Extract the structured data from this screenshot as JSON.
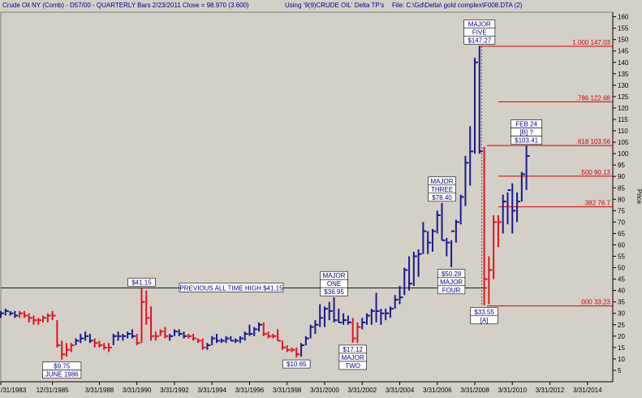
{
  "header": {
    "instrument": "Crude Oil NY (Comb) - D57/00 -  QUARTERLY Bars  2/23/2011 Close = 98.970 (3.600)",
    "using": "Using '9(9)CRUDE OIL' Delta TP's",
    "file": "File: C:\\Gd\\Delta\\ gold complex\\F008.DTA (2)"
  },
  "colors": {
    "up_bar": "#1a1a8c",
    "down_bar": "#e0141e",
    "fib_line": "#cc0000",
    "plot_bg": "#d4d0c8",
    "text": "#00008b"
  },
  "chart_data": {
    "type": "bar",
    "title": "",
    "xlabel": "",
    "ylabel": "Price",
    "ylim": [
      0,
      162
    ],
    "y_ticks": [
      5,
      10,
      15,
      20,
      25,
      30,
      35,
      40,
      45,
      50,
      55,
      60,
      65,
      70,
      75,
      80,
      85,
      90,
      95,
      100,
      105,
      110,
      115,
      120,
      125,
      130,
      135,
      140,
      145,
      150,
      155,
      160
    ],
    "x_ticks": [
      "/31/1983",
      "12/31/1985",
      "3/31/1988",
      "3/31/1990",
      "3/31/1992",
      "3/31/1994",
      "3/31/1996",
      "3/31/1998",
      "3/31/2000",
      "3/31/2002",
      "3/31/2004",
      "3/31/2006",
      "3/31/2008",
      "3/31/2010",
      "3/31/2012",
      "3/31/2014"
    ],
    "x_tick_years": [
      1983.0,
      1985.75,
      1988.25,
      1990.25,
      1992.25,
      1994.25,
      1996.25,
      1998.25,
      2000.25,
      2002.25,
      2004.25,
      2006.25,
      2008.25,
      2010.25,
      2012.25,
      2014.25
    ],
    "xlim": [
      1983.0,
      2015.6
    ],
    "bars": [
      {
        "t": 1983.0,
        "h": 31,
        "l": 28,
        "c": 30,
        "d": 0
      },
      {
        "t": 1983.25,
        "h": 32,
        "l": 29,
        "c": 31,
        "d": 0
      },
      {
        "t": 1983.5,
        "h": 31,
        "l": 29,
        "c": 30,
        "d": 0
      },
      {
        "t": 1983.75,
        "h": 31,
        "l": 28,
        "c": 29,
        "d": 0
      },
      {
        "t": 1984.0,
        "h": 31,
        "l": 28,
        "c": 30,
        "d": 1
      },
      {
        "t": 1984.25,
        "h": 31,
        "l": 28,
        "c": 29,
        "d": 1
      },
      {
        "t": 1984.5,
        "h": 30,
        "l": 26,
        "c": 28,
        "d": 1
      },
      {
        "t": 1984.75,
        "h": 29,
        "l": 25,
        "c": 27,
        "d": 1
      },
      {
        "t": 1985.0,
        "h": 28,
        "l": 25,
        "c": 27,
        "d": 1
      },
      {
        "t": 1985.25,
        "h": 29,
        "l": 26,
        "c": 28,
        "d": 1
      },
      {
        "t": 1985.5,
        "h": 30,
        "l": 26,
        "c": 29,
        "d": 1
      },
      {
        "t": 1985.75,
        "h": 31,
        "l": 27,
        "c": 29,
        "d": 1
      },
      {
        "t": 1986.0,
        "h": 27,
        "l": 15,
        "c": 16,
        "d": 1
      },
      {
        "t": 1986.25,
        "h": 18,
        "l": 9.75,
        "c": 12,
        "d": 1
      },
      {
        "t": 1986.5,
        "h": 17,
        "l": 11,
        "c": 14,
        "d": 1
      },
      {
        "t": 1986.75,
        "h": 17,
        "l": 13,
        "c": 16,
        "d": 1
      },
      {
        "t": 1987.0,
        "h": 19,
        "l": 16,
        "c": 18,
        "d": 0
      },
      {
        "t": 1987.25,
        "h": 21,
        "l": 17,
        "c": 19,
        "d": 0
      },
      {
        "t": 1987.5,
        "h": 22,
        "l": 18,
        "c": 20,
        "d": 0
      },
      {
        "t": 1987.75,
        "h": 21,
        "l": 17,
        "c": 18,
        "d": 0
      },
      {
        "t": 1988.0,
        "h": 19,
        "l": 15,
        "c": 17,
        "d": 1
      },
      {
        "t": 1988.25,
        "h": 18,
        "l": 15,
        "c": 16,
        "d": 1
      },
      {
        "t": 1988.5,
        "h": 17,
        "l": 14,
        "c": 15,
        "d": 1
      },
      {
        "t": 1988.75,
        "h": 17,
        "l": 13,
        "c": 15,
        "d": 1
      },
      {
        "t": 1989.0,
        "h": 21,
        "l": 16,
        "c": 20,
        "d": 0
      },
      {
        "t": 1989.25,
        "h": 22,
        "l": 18,
        "c": 20,
        "d": 0
      },
      {
        "t": 1989.5,
        "h": 21,
        "l": 18,
        "c": 20,
        "d": 0
      },
      {
        "t": 1989.75,
        "h": 22,
        "l": 19,
        "c": 21,
        "d": 0
      },
      {
        "t": 1990.0,
        "h": 23,
        "l": 19,
        "c": 20,
        "d": 0
      },
      {
        "t": 1990.25,
        "h": 21,
        "l": 16,
        "c": 17,
        "d": 1
      },
      {
        "t": 1990.5,
        "h": 41.15,
        "l": 17,
        "c": 35,
        "d": 1
      },
      {
        "t": 1990.75,
        "h": 40,
        "l": 25,
        "c": 28,
        "d": 1
      },
      {
        "t": 1991.0,
        "h": 33,
        "l": 18,
        "c": 20,
        "d": 1
      },
      {
        "t": 1991.25,
        "h": 22,
        "l": 18,
        "c": 20,
        "d": 1
      },
      {
        "t": 1991.5,
        "h": 23,
        "l": 20,
        "c": 22,
        "d": 1
      },
      {
        "t": 1991.75,
        "h": 24,
        "l": 19,
        "c": 20,
        "d": 1
      },
      {
        "t": 1992.0,
        "h": 21,
        "l": 18,
        "c": 20,
        "d": 0
      },
      {
        "t": 1992.25,
        "h": 23,
        "l": 20,
        "c": 22,
        "d": 0
      },
      {
        "t": 1992.5,
        "h": 23,
        "l": 20,
        "c": 21,
        "d": 0
      },
      {
        "t": 1992.75,
        "h": 22,
        "l": 19,
        "c": 20,
        "d": 0
      },
      {
        "t": 1993.0,
        "h": 21,
        "l": 19,
        "c": 20,
        "d": 1
      },
      {
        "t": 1993.25,
        "h": 21,
        "l": 18,
        "c": 19,
        "d": 1
      },
      {
        "t": 1993.5,
        "h": 19,
        "l": 17,
        "c": 18,
        "d": 1
      },
      {
        "t": 1993.75,
        "h": 19,
        "l": 14,
        "c": 15,
        "d": 1
      },
      {
        "t": 1994.0,
        "h": 17,
        "l": 14,
        "c": 16,
        "d": 0
      },
      {
        "t": 1994.25,
        "h": 20,
        "l": 16,
        "c": 19,
        "d": 0
      },
      {
        "t": 1994.5,
        "h": 21,
        "l": 17,
        "c": 18,
        "d": 0
      },
      {
        "t": 1994.75,
        "h": 19,
        "l": 17,
        "c": 18,
        "d": 0
      },
      {
        "t": 1995.0,
        "h": 20,
        "l": 17,
        "c": 19,
        "d": 0
      },
      {
        "t": 1995.25,
        "h": 20,
        "l": 18,
        "c": 18,
        "d": 0
      },
      {
        "t": 1995.5,
        "h": 19,
        "l": 17,
        "c": 18,
        "d": 0
      },
      {
        "t": 1995.75,
        "h": 20,
        "l": 17,
        "c": 19,
        "d": 0
      },
      {
        "t": 1996.0,
        "h": 22,
        "l": 18,
        "c": 21,
        "d": 0
      },
      {
        "t": 1996.25,
        "h": 25,
        "l": 20,
        "c": 21,
        "d": 0
      },
      {
        "t": 1996.5,
        "h": 24,
        "l": 20,
        "c": 23,
        "d": 0
      },
      {
        "t": 1996.75,
        "h": 26,
        "l": 22,
        "c": 25,
        "d": 0
      },
      {
        "t": 1997.0,
        "h": 26,
        "l": 20,
        "c": 21,
        "d": 1
      },
      {
        "t": 1997.25,
        "h": 22,
        "l": 19,
        "c": 20,
        "d": 1
      },
      {
        "t": 1997.5,
        "h": 21,
        "l": 19,
        "c": 20,
        "d": 1
      },
      {
        "t": 1997.75,
        "h": 23,
        "l": 18,
        "c": 18,
        "d": 1
      },
      {
        "t": 1998.0,
        "h": 18,
        "l": 14,
        "c": 15,
        "d": 1
      },
      {
        "t": 1998.25,
        "h": 16,
        "l": 13,
        "c": 14,
        "d": 1
      },
      {
        "t": 1998.5,
        "h": 15,
        "l": 13,
        "c": 14,
        "d": 1
      },
      {
        "t": 1998.75,
        "h": 15,
        "l": 10.65,
        "c": 12,
        "d": 1
      },
      {
        "t": 1999.0,
        "h": 17,
        "l": 11,
        "c": 16,
        "d": 0
      },
      {
        "t": 1999.25,
        "h": 20,
        "l": 16,
        "c": 19,
        "d": 0
      },
      {
        "t": 1999.5,
        "h": 25,
        "l": 19,
        "c": 24,
        "d": 0
      },
      {
        "t": 1999.75,
        "h": 27,
        "l": 21,
        "c": 25,
        "d": 0
      },
      {
        "t": 2000.0,
        "h": 34,
        "l": 24,
        "c": 28,
        "d": 0
      },
      {
        "t": 2000.25,
        "h": 33,
        "l": 24,
        "c": 32,
        "d": 0
      },
      {
        "t": 2000.5,
        "h": 35,
        "l": 27,
        "c": 31,
        "d": 0
      },
      {
        "t": 2000.75,
        "h": 36.95,
        "l": 26,
        "c": 27,
        "d": 0
      },
      {
        "t": 2001.0,
        "h": 32,
        "l": 26,
        "c": 26,
        "d": 0
      },
      {
        "t": 2001.25,
        "h": 30,
        "l": 25,
        "c": 27,
        "d": 0
      },
      {
        "t": 2001.5,
        "h": 29,
        "l": 25,
        "c": 26,
        "d": 0
      },
      {
        "t": 2001.75,
        "h": 28,
        "l": 17.12,
        "c": 19,
        "d": 1
      },
      {
        "t": 2002.0,
        "h": 26,
        "l": 17,
        "c": 24,
        "d": 1
      },
      {
        "t": 2002.25,
        "h": 28,
        "l": 23,
        "c": 26,
        "d": 0
      },
      {
        "t": 2002.5,
        "h": 30,
        "l": 25,
        "c": 29,
        "d": 0
      },
      {
        "t": 2002.75,
        "h": 32,
        "l": 25,
        "c": 31,
        "d": 0
      },
      {
        "t": 2003.0,
        "h": 39,
        "l": 26,
        "c": 31,
        "d": 0
      },
      {
        "t": 2003.25,
        "h": 32,
        "l": 25,
        "c": 30,
        "d": 0
      },
      {
        "t": 2003.5,
        "h": 32,
        "l": 27,
        "c": 30,
        "d": 0
      },
      {
        "t": 2003.75,
        "h": 33,
        "l": 28,
        "c": 32,
        "d": 0
      },
      {
        "t": 2004.0,
        "h": 38,
        "l": 32,
        "c": 36,
        "d": 0
      },
      {
        "t": 2004.25,
        "h": 42,
        "l": 34,
        "c": 37,
        "d": 0
      },
      {
        "t": 2004.5,
        "h": 50,
        "l": 38,
        "c": 49,
        "d": 0
      },
      {
        "t": 2004.75,
        "h": 55,
        "l": 40,
        "c": 43,
        "d": 0
      },
      {
        "t": 2005.0,
        "h": 57,
        "l": 42,
        "c": 55,
        "d": 0
      },
      {
        "t": 2005.25,
        "h": 58,
        "l": 46,
        "c": 56,
        "d": 0
      },
      {
        "t": 2005.5,
        "h": 70,
        "l": 56,
        "c": 66,
        "d": 0
      },
      {
        "t": 2005.75,
        "h": 66,
        "l": 56,
        "c": 61,
        "d": 0
      },
      {
        "t": 2006.0,
        "h": 67,
        "l": 57,
        "c": 66,
        "d": 0
      },
      {
        "t": 2006.25,
        "h": 75,
        "l": 65,
        "c": 73,
        "d": 0
      },
      {
        "t": 2006.5,
        "h": 78.4,
        "l": 62,
        "c": 62,
        "d": 0
      },
      {
        "t": 2006.75,
        "h": 63,
        "l": 55,
        "c": 61,
        "d": 0
      },
      {
        "t": 2007.0,
        "h": 62,
        "l": 50.28,
        "c": 66,
        "d": 0
      },
      {
        "t": 2007.25,
        "h": 71,
        "l": 61,
        "c": 70,
        "d": 0
      },
      {
        "t": 2007.5,
        "h": 82,
        "l": 69,
        "c": 81,
        "d": 0
      },
      {
        "t": 2007.75,
        "h": 99,
        "l": 77,
        "c": 96,
        "d": 0
      },
      {
        "t": 2008.0,
        "h": 112,
        "l": 86,
        "c": 101,
        "d": 0
      },
      {
        "t": 2008.25,
        "h": 142,
        "l": 100,
        "c": 140,
        "d": 0
      },
      {
        "t": 2008.5,
        "h": 147.27,
        "l": 100,
        "c": 101,
        "d": 0
      },
      {
        "t": 2008.75,
        "h": 103,
        "l": 33.55,
        "c": 45,
        "d": 1
      },
      {
        "t": 2009.0,
        "h": 55,
        "l": 34,
        "c": 49,
        "d": 1
      },
      {
        "t": 2009.25,
        "h": 73,
        "l": 45,
        "c": 70,
        "d": 1
      },
      {
        "t": 2009.5,
        "h": 73,
        "l": 59,
        "c": 70,
        "d": 1
      },
      {
        "t": 2009.75,
        "h": 82,
        "l": 65,
        "c": 79,
        "d": 0
      },
      {
        "t": 2010.0,
        "h": 83,
        "l": 69,
        "c": 84,
        "d": 0
      },
      {
        "t": 2010.25,
        "h": 87,
        "l": 65,
        "c": 75,
        "d": 0
      },
      {
        "t": 2010.5,
        "h": 83,
        "l": 70,
        "c": 79,
        "d": 0
      },
      {
        "t": 2010.75,
        "h": 92,
        "l": 79,
        "c": 91,
        "d": 0
      },
      {
        "t": 2011.0,
        "h": 103.41,
        "l": 84,
        "c": 98.97,
        "d": 0
      }
    ],
    "annotations": [
      {
        "lines": [
          "$9.75",
          "JUNE 1986"
        ],
        "t": 1986.25,
        "v": 9.75,
        "pos": "below"
      },
      {
        "lines": [
          "$41.15"
        ],
        "t": 1990.5,
        "v": 41.15,
        "pos": "above"
      },
      {
        "lines": [
          "$10.65"
        ],
        "t": 1998.75,
        "v": 10.65,
        "pos": "below"
      },
      {
        "lines": [
          "MAJOR",
          "ONE",
          "$36.95"
        ],
        "t": 2000.75,
        "v": 36.95,
        "pos": "above"
      },
      {
        "lines": [
          "$17.12",
          "MAJOR",
          "TWO"
        ],
        "t": 2001.75,
        "v": 17.12,
        "pos": "below"
      },
      {
        "lines": [
          "MAJOR",
          "THREE",
          "$78.40"
        ],
        "t": 2006.5,
        "v": 78.4,
        "pos": "above"
      },
      {
        "lines": [
          "$50.28",
          "MAJOR",
          "FOUR"
        ],
        "t": 2007.0,
        "v": 50.28,
        "pos": "below"
      },
      {
        "lines": [
          "MAJOR",
          "FIVE",
          "$147.27"
        ],
        "t": 2008.5,
        "v": 147.27,
        "pos": "above"
      },
      {
        "lines": [
          "$33.55",
          "[A]"
        ],
        "t": 2008.75,
        "v": 33.55,
        "pos": "below"
      },
      {
        "lines": [
          "FEB 24",
          "[B] ?",
          "$103.41"
        ],
        "t": 2011.0,
        "v": 103.41,
        "pos": "above"
      }
    ],
    "previous_high": {
      "label": "PREVIOUS ALL TIME HIGH $41.15",
      "value": 41.15
    },
    "fib_levels": [
      {
        "label": "1.000  147.03",
        "value": 147.03,
        "start": 2008.5
      },
      {
        "label": ".786  122.68",
        "value": 122.68,
        "start": 2009.5
      },
      {
        "label": ".618  103.56",
        "value": 103.56,
        "start": 2008.9
      },
      {
        "label": ".500  90.13",
        "value": 90.13,
        "start": 2009.5
      },
      {
        "label": ".382  76.7",
        "value": 76.7,
        "start": 2009.5
      },
      {
        "label": ".000  33.23",
        "value": 33.23,
        "start": 2008.9
      }
    ]
  }
}
